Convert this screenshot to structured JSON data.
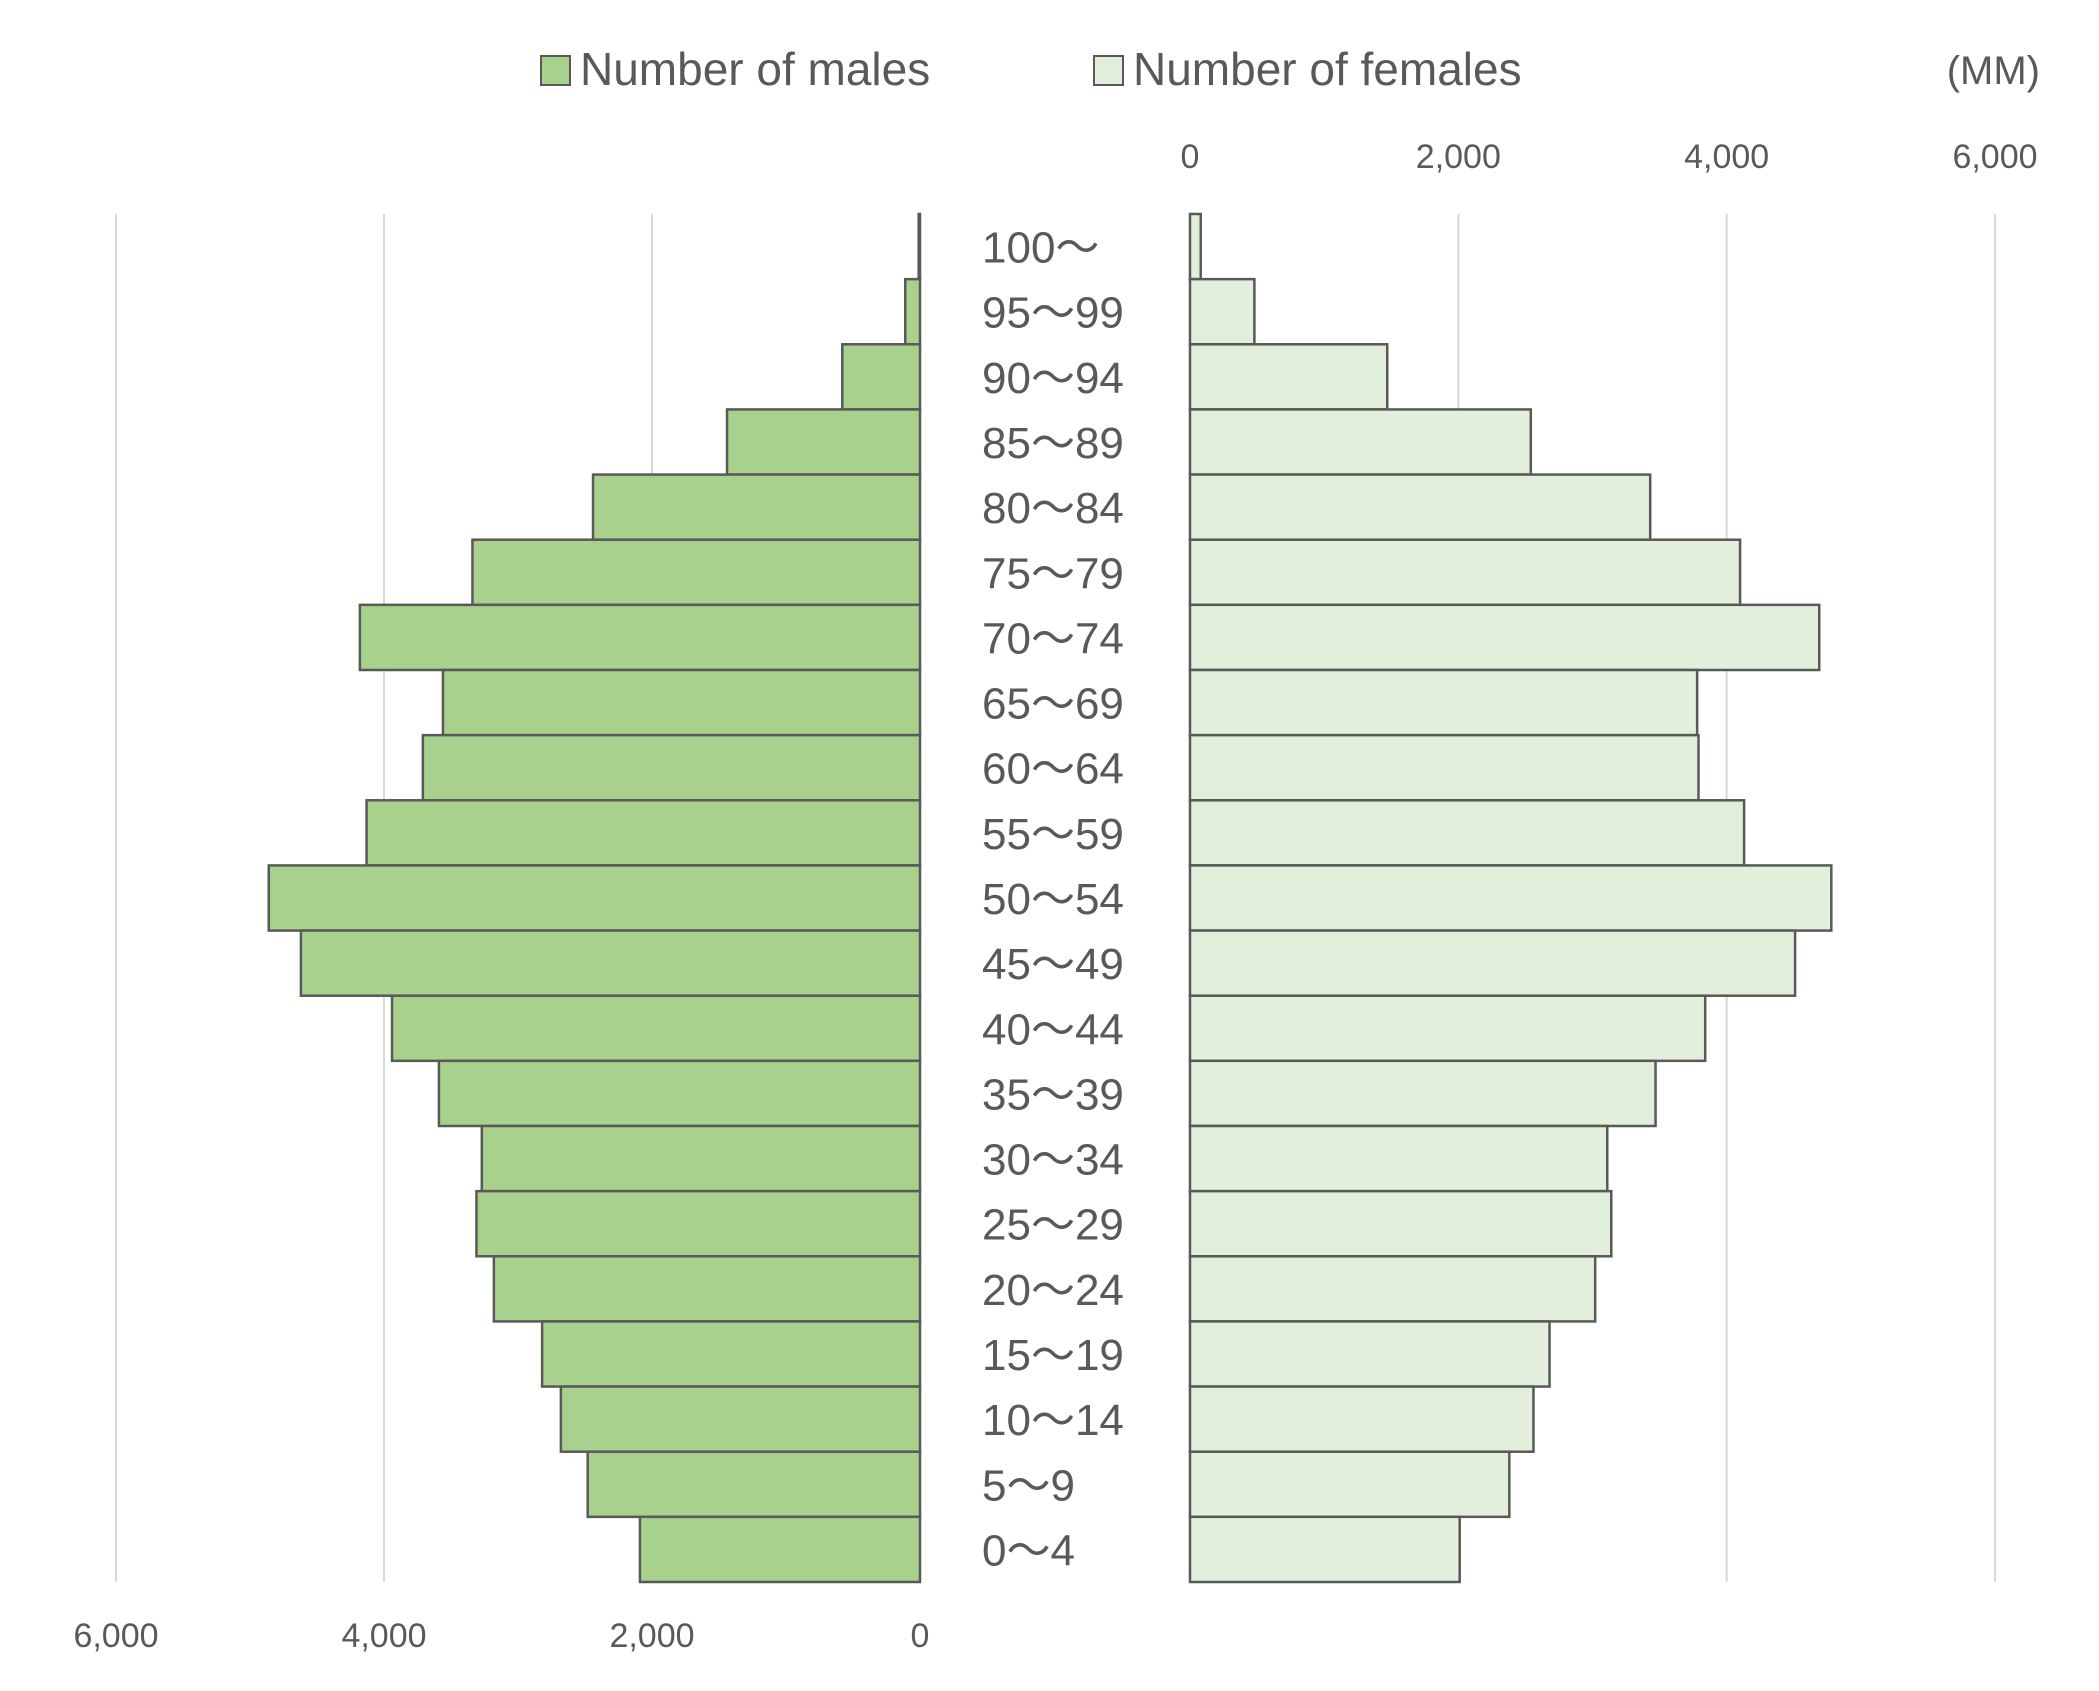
{
  "legend": {
    "males_label": "Number of males",
    "females_label": "Number of females",
    "unit": "(MM)"
  },
  "colors": {
    "males": "#a9d18e",
    "females": "#e2efda",
    "bar_stroke": "#595959",
    "grid": "#d9d9d9"
  },
  "chart_data": {
    "type": "bar",
    "orientation": "horizontal",
    "subtype": "population-pyramid",
    "categories": [
      "100～",
      "95～99",
      "90～94",
      "85～89",
      "80～84",
      "75～79",
      "70～74",
      "65～69",
      "60～64",
      "55～59",
      "50～54",
      "45～49",
      "40～44",
      "35～39",
      "30～34",
      "25～29",
      "20～24",
      "15～19",
      "10～14",
      "5～9",
      "0～4"
    ],
    "series": [
      {
        "name": "Number of males",
        "side": "left",
        "values": [
          10,
          110,
          580,
          1440,
          2440,
          3340,
          4180,
          3560,
          3710,
          4130,
          4860,
          4620,
          3940,
          3590,
          3270,
          3310,
          3180,
          2820,
          2680,
          2480,
          2090
        ]
      },
      {
        "name": "Number of females",
        "side": "right",
        "values": [
          80,
          480,
          1470,
          2540,
          3430,
          4100,
          4690,
          3780,
          3790,
          4130,
          4780,
          4510,
          3840,
          3470,
          3110,
          3140,
          3020,
          2680,
          2560,
          2380,
          2010
        ]
      }
    ],
    "left_axis": {
      "ticks": [
        "6,000",
        "4,000",
        "2,000",
        "0"
      ],
      "tick_values": [
        6000,
        4000,
        2000,
        0
      ],
      "range": [
        6000,
        0
      ],
      "position": "bottom"
    },
    "right_axis": {
      "ticks": [
        "0",
        "2,000",
        "4,000",
        "6,000"
      ],
      "tick_values": [
        0,
        2000,
        4000,
        6000
      ],
      "range": [
        0,
        6000
      ],
      "position": "top"
    },
    "grid": true,
    "legend_position": "top-center"
  }
}
